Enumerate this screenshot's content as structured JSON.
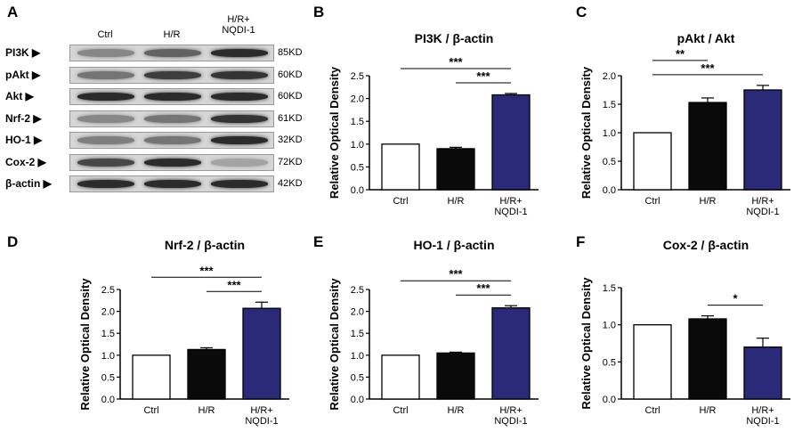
{
  "panels": {
    "A": "A",
    "B": "B",
    "C": "C",
    "D": "D",
    "E": "E",
    "F": "F"
  },
  "blot": {
    "lanes": [
      "Ctrl",
      "H/R",
      "H/R+\nNQDI-1"
    ],
    "rows": [
      {
        "protein": "PI3K",
        "size": "85KD",
        "intensity": [
          0.35,
          0.55,
          0.85
        ]
      },
      {
        "protein": "pAkt",
        "size": "60KD",
        "intensity": [
          0.45,
          0.75,
          0.8
        ]
      },
      {
        "protein": "Akt",
        "size": "60KD",
        "intensity": [
          0.85,
          0.85,
          0.85
        ]
      },
      {
        "protein": "Nrf-2",
        "size": "61KD",
        "intensity": [
          0.35,
          0.45,
          0.8
        ]
      },
      {
        "protein": "HO-1",
        "size": "32KD",
        "intensity": [
          0.4,
          0.45,
          0.85
        ]
      },
      {
        "protein": "Cox-2",
        "size": "72KD",
        "intensity": [
          0.7,
          0.85,
          0.2
        ]
      },
      {
        "protein": "β-actin",
        "size": "42KD",
        "intensity": [
          0.85,
          0.85,
          0.85
        ]
      }
    ]
  },
  "colors": {
    "ctrl": "#ffffff",
    "hr": "#0a0a0a",
    "nqdi": "#2a2a78"
  },
  "chart_data": [
    {
      "panel": "B",
      "type": "bar",
      "title": "PI3K / β-actin",
      "ylabel": "Relative Optical Density",
      "categories": [
        "Ctrl",
        "H/R",
        "H/R+\nNQDI-1"
      ],
      "values": [
        1.0,
        0.9,
        2.08
      ],
      "errors": [
        0,
        0.03,
        0.03
      ],
      "ylim": [
        0,
        2.5
      ],
      "yticks": [
        "0.0",
        "0.5",
        "1.0",
        "1.5",
        "2.0",
        "2.5"
      ],
      "significance": [
        {
          "from": 0,
          "to": 2,
          "label": "***"
        },
        {
          "from": 1,
          "to": 2,
          "label": "***"
        }
      ]
    },
    {
      "panel": "C",
      "type": "bar",
      "title": "pAkt / Akt",
      "ylabel": "Relative Optical Density",
      "categories": [
        "Ctrl",
        "H/R",
        "H/R+\nNQDI-1"
      ],
      "values": [
        1.0,
        1.53,
        1.75
      ],
      "errors": [
        0,
        0.08,
        0.08
      ],
      "ylim": [
        0,
        2.0
      ],
      "yticks": [
        "0.0",
        "0.5",
        "1.0",
        "1.5",
        "2.0"
      ],
      "significance": [
        {
          "from": 0,
          "to": 1,
          "label": "**"
        },
        {
          "from": 0,
          "to": 2,
          "label": "***"
        }
      ]
    },
    {
      "panel": "D",
      "type": "bar",
      "title": "Nrf-2 / β-actin",
      "ylabel": "Relative Optical Density",
      "categories": [
        "Ctrl",
        "H/R",
        "H/R+\nNQDI-1"
      ],
      "values": [
        1.0,
        1.13,
        2.07
      ],
      "errors": [
        0,
        0.04,
        0.14
      ],
      "ylim": [
        0,
        2.5
      ],
      "yticks": [
        "0.0",
        "0.5",
        "1.0",
        "1.5",
        "2.0",
        "2.5"
      ],
      "significance": [
        {
          "from": 0,
          "to": 2,
          "label": "***"
        },
        {
          "from": 1,
          "to": 2,
          "label": "***"
        }
      ]
    },
    {
      "panel": "E",
      "type": "bar",
      "title": "HO-1 / β-actin",
      "ylabel": "Relative Optical Density",
      "categories": [
        "Ctrl",
        "H/R",
        "H/R+\nNQDI-1"
      ],
      "values": [
        1.0,
        1.05,
        2.08
      ],
      "errors": [
        0,
        0.02,
        0.05
      ],
      "ylim": [
        0,
        2.5
      ],
      "yticks": [
        "0.0",
        "0.5",
        "1.0",
        "1.5",
        "2.0",
        "2.5"
      ],
      "significance": [
        {
          "from": 0,
          "to": 2,
          "label": "***"
        },
        {
          "from": 1,
          "to": 2,
          "label": "***"
        }
      ]
    },
    {
      "panel": "F",
      "type": "bar",
      "title": "Cox-2 / β-actin",
      "ylabel": "Relative Optical Density",
      "categories": [
        "Ctrl",
        "H/R",
        "H/R+\nNQDI-1"
      ],
      "values": [
        1.0,
        1.08,
        0.7
      ],
      "errors": [
        0,
        0.04,
        0.12
      ],
      "ylim": [
        0,
        1.5
      ],
      "yticks": [
        "0.0",
        "0.5",
        "1.0",
        "1.5"
      ],
      "significance": [
        {
          "from": 1,
          "to": 2,
          "label": "*"
        }
      ]
    }
  ]
}
